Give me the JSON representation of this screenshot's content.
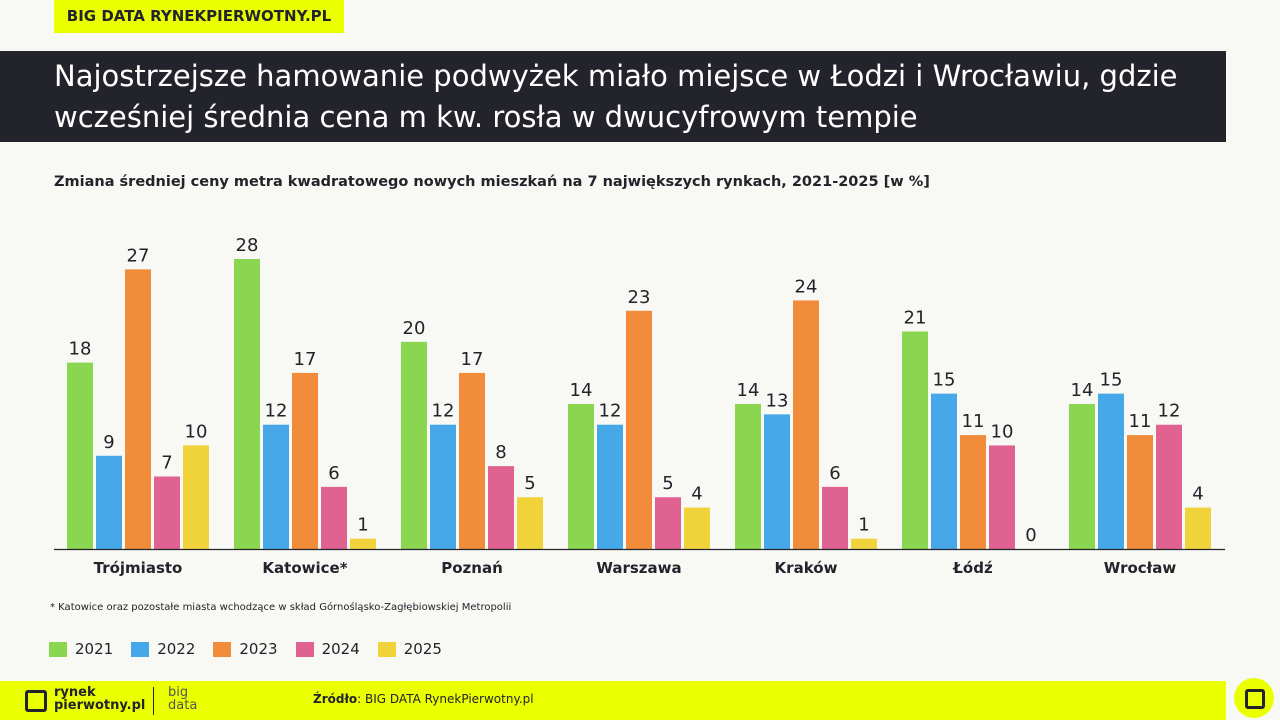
{
  "tag": "BIG DATA RYNEKPIERWOTNY.PL",
  "title": "Najostrzejsze hamowanie podwyżek miało miejsce w Łodzi i Wrocławiu, gdzie wcześniej średnia cena m kw. rosła w dwucyfrowym tempie",
  "note": "* Katowice oraz pozostałe miasta wchodzące w skład Górnośląsko-Zagłębiowskiej Metropolii",
  "footer": {
    "logo_line1": "rynek",
    "logo_line2": "pierwotny.pl",
    "logo_b1": "big",
    "logo_b2": "data",
    "source_label": "Źródło",
    "source_text": ": BIG DATA RynekPierwotny.pl"
  },
  "chart_data": {
    "type": "bar",
    "title": "Zmiana średniej ceny metra kwadratowego nowych mieszkań na 7 największych rynkach, 2021-2025 [w %]",
    "categories": [
      "Trójmiasto",
      "Katowice*",
      "Poznań",
      "Warszawa",
      "Kraków",
      "Łódź",
      "Wrocław"
    ],
    "series": [
      {
        "name": "2021",
        "color": "#8ad650",
        "values": [
          18,
          28,
          20,
          14,
          14,
          21,
          14
        ]
      },
      {
        "name": "2022",
        "color": "#46a8e8",
        "values": [
          9,
          12,
          12,
          12,
          13,
          15,
          15
        ]
      },
      {
        "name": "2023",
        "color": "#f08c3a",
        "values": [
          27,
          17,
          17,
          23,
          24,
          11,
          11
        ]
      },
      {
        "name": "2024",
        "color": "#e06290",
        "values": [
          7,
          6,
          8,
          5,
          6,
          10,
          12
        ]
      },
      {
        "name": "2025",
        "color": "#f0d23a",
        "values": [
          10,
          1,
          5,
          4,
          1,
          0,
          4
        ]
      }
    ],
    "ylim": [
      0,
      28
    ],
    "grid": false,
    "legend": "bottom-left"
  }
}
